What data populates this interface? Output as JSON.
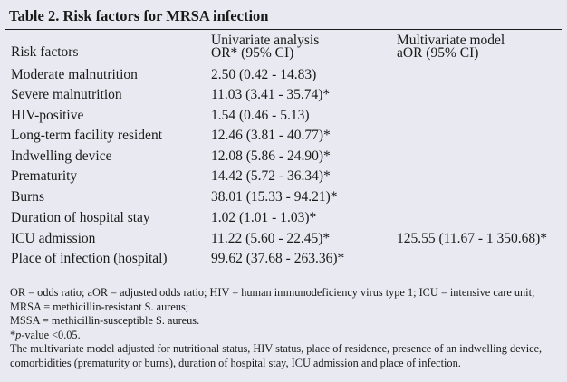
{
  "table": {
    "title": "Table 2. Risk factors for MRSA infection",
    "headers": {
      "col1": "Risk factors",
      "col2_line1": "Univariate analysis",
      "col2_line2": "OR* (95% CI)",
      "col3_line1": "Multivariate model",
      "col3_line2": "aOR (95% CI)"
    },
    "rows": [
      {
        "factor": "Moderate malnutrition",
        "or": "2.50 (0.42 - 14.83)",
        "aor": ""
      },
      {
        "factor": "Severe malnutrition",
        "or": "11.03 (3.41 - 35.74)*",
        "aor": ""
      },
      {
        "factor": "HIV-positive",
        "or": "1.54 (0.46 - 5.13)",
        "aor": ""
      },
      {
        "factor": "Long-term facility resident",
        "or": "12.46 (3.81 - 40.77)*",
        "aor": ""
      },
      {
        "factor": "Indwelling device",
        "or": "12.08 (5.86 - 24.90)*",
        "aor": ""
      },
      {
        "factor": "Prematurity",
        "or": "14.42 (5.72 - 36.34)*",
        "aor": ""
      },
      {
        "factor": "Burns",
        "or": "38.01 (15.33 - 94.21)*",
        "aor": ""
      },
      {
        "factor": "Duration of hospital stay",
        "or": "1.02 (1.01 - 1.03)*",
        "aor": ""
      },
      {
        "factor": "ICU admission",
        "or": "11.22 (5.60 - 22.45)*",
        "aor": "125.55 (11.67 - 1 350.68)*"
      },
      {
        "factor": "Place of infection (hospital)",
        "or": "99.62 (37.68 - 263.36)*",
        "aor": ""
      }
    ]
  },
  "footnotes": {
    "abbreviations": "OR = odds ratio; aOR = adjusted odds ratio; HIV = human immunodeficiency virus type 1; ICU = intensive care unit; MRSA = methicillin-resistant S. aureus;",
    "mssa": "MSSA = methicillin-susceptible S. aureus.",
    "pvalue_star": "*",
    "pvalue_label": "p",
    "pvalue_rest": "-value <0.05.",
    "model_note": "The multivariate model adjusted for nutritional status, HIV status, place of residence, presence of an indwelling device, comorbidities (prematurity or burns), duration of hospital stay, ICU admission and place of infection."
  }
}
